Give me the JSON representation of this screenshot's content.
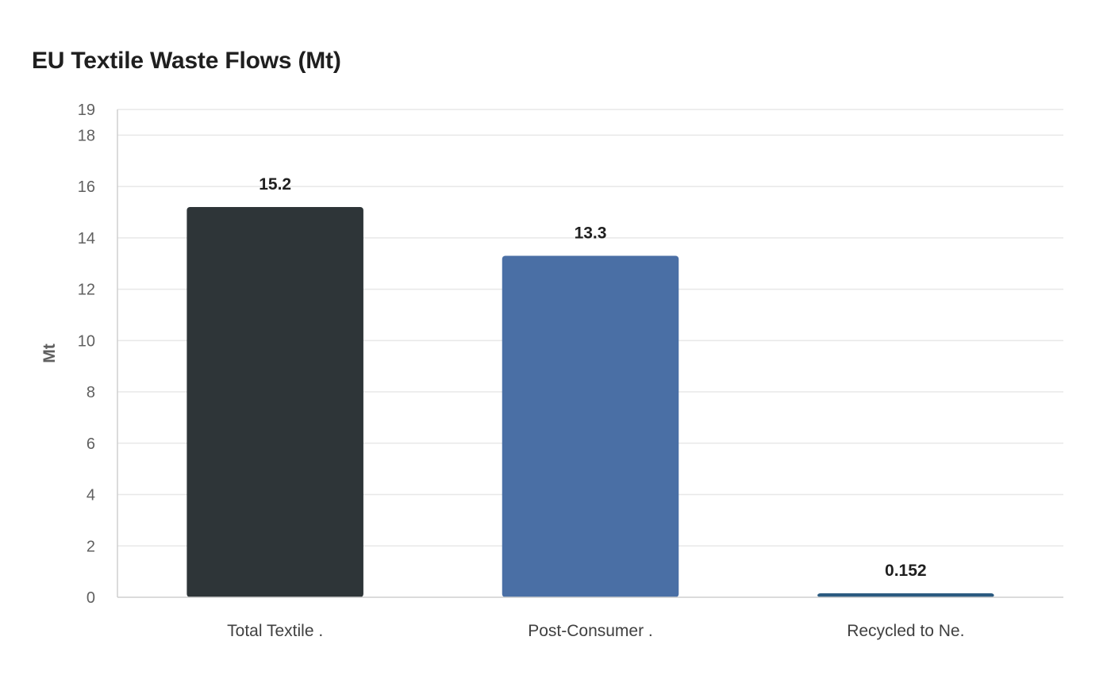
{
  "chart_data": {
    "type": "bar",
    "title": "EU Textile Waste Flows (Mt)",
    "ylabel": "Mt",
    "xlabel": "",
    "categories": [
      "Total Textile .",
      "Post-Consumer .",
      "Recycled to Ne."
    ],
    "values": [
      15.2,
      13.3,
      0.152
    ],
    "value_labels": [
      "15.2",
      "13.3",
      "0.152"
    ],
    "colors": [
      "#2e3538",
      "#4a6fa5",
      "#2b5a80"
    ],
    "ylim": [
      0,
      19
    ],
    "yticks": [
      0,
      2,
      4,
      6,
      8,
      10,
      12,
      14,
      16,
      18,
      19
    ],
    "grid": true,
    "legend": "none"
  }
}
